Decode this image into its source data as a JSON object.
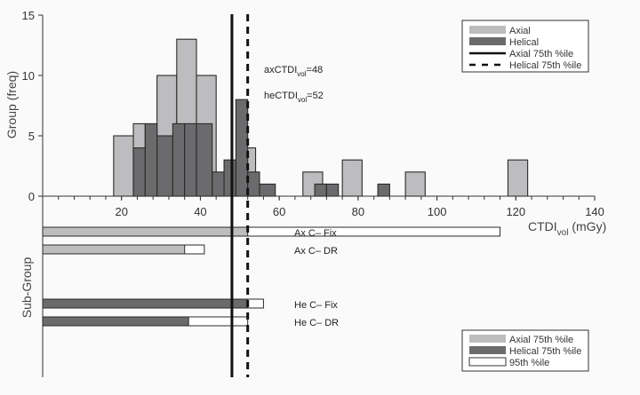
{
  "chart_data": {
    "type": "bar",
    "title": "",
    "xlabel": "CTDI_vol (mGy)",
    "xlabel_main": "CTDI",
    "xlabel_sub": "vol",
    "xlabel_unit": " (mGy)",
    "ylabel": "Group (freq)",
    "ylabel_lower": "Sub-Group",
    "xlim": [
      0,
      140
    ],
    "ylim": [
      0,
      15
    ],
    "x_ticks": [
      20,
      40,
      60,
      80,
      100,
      120,
      140
    ],
    "y_ticks": [
      0,
      5,
      10,
      15
    ],
    "grid": false,
    "series": [
      {
        "name": "Axial",
        "color": "#bdbdbf",
        "bins": [
          {
            "x0": 18,
            "x1": 23,
            "value": 5
          },
          {
            "x0": 23,
            "x1": 26,
            "value": 6
          },
          {
            "x0": 29,
            "x1": 34,
            "value": 10
          },
          {
            "x0": 34,
            "x1": 39,
            "value": 13
          },
          {
            "x0": 39,
            "x1": 44,
            "value": 10
          },
          {
            "x0": 51,
            "x1": 54,
            "value": 4
          },
          {
            "x0": 66,
            "x1": 71,
            "value": 2
          },
          {
            "x0": 76,
            "x1": 81,
            "value": 3
          },
          {
            "x0": 92,
            "x1": 97,
            "value": 2
          },
          {
            "x0": 118,
            "x1": 123,
            "value": 3
          }
        ]
      },
      {
        "name": "Helical",
        "color": "#6b6b6d",
        "bins": [
          {
            "x0": 23,
            "x1": 26,
            "value": 4
          },
          {
            "x0": 26,
            "x1": 29,
            "value": 6
          },
          {
            "x0": 29,
            "x1": 33,
            "value": 5
          },
          {
            "x0": 33,
            "x1": 36,
            "value": 6
          },
          {
            "x0": 36,
            "x1": 39,
            "value": 6
          },
          {
            "x0": 39,
            "x1": 43,
            "value": 6
          },
          {
            "x0": 43,
            "x1": 46,
            "value": 2
          },
          {
            "x0": 46,
            "x1": 49,
            "value": 3
          },
          {
            "x0": 49,
            "x1": 52,
            "value": 8
          },
          {
            "x0": 52,
            "x1": 55,
            "value": 2
          },
          {
            "x0": 55,
            "x1": 59,
            "value": 1
          },
          {
            "x0": 69,
            "x1": 72,
            "value": 1
          },
          {
            "x0": 72,
            "x1": 75,
            "value": 1
          },
          {
            "x0": 85,
            "x1": 88,
            "value": 1
          }
        ]
      }
    ],
    "reference_lines": [
      {
        "name": "Axial 75th %ile",
        "x": 48,
        "style": "solid"
      },
      {
        "name": "Helical 75th %ile",
        "x": 52,
        "style": "dashed"
      }
    ],
    "annotations": [
      {
        "prefix": "axCTDI",
        "sub": "vol",
        "suffix": "=48"
      },
      {
        "prefix": "heCTDI",
        "sub": "vol",
        "suffix": "=52"
      }
    ],
    "subgroups": [
      {
        "label": "Ax C– Fix",
        "type": "axial",
        "p75": 52,
        "p95": 116
      },
      {
        "label": "Ax C– DR",
        "type": "axial",
        "p75": 36,
        "p95": 41
      },
      {
        "label": "He C– Fix",
        "type": "helical",
        "p75": 52,
        "p95": 56
      },
      {
        "label": "He C– DR",
        "type": "helical",
        "p75": 37,
        "p95": 52
      }
    ],
    "legend_top": [
      "Axial",
      "Helical",
      "Axial 75th %ile",
      "Helical 75th %ile"
    ],
    "legend_bottom": [
      "Axial 75th %ile",
      "Helical 75th %ile",
      "95th %ile"
    ],
    "legend_position": "top-right / bottom-right"
  }
}
